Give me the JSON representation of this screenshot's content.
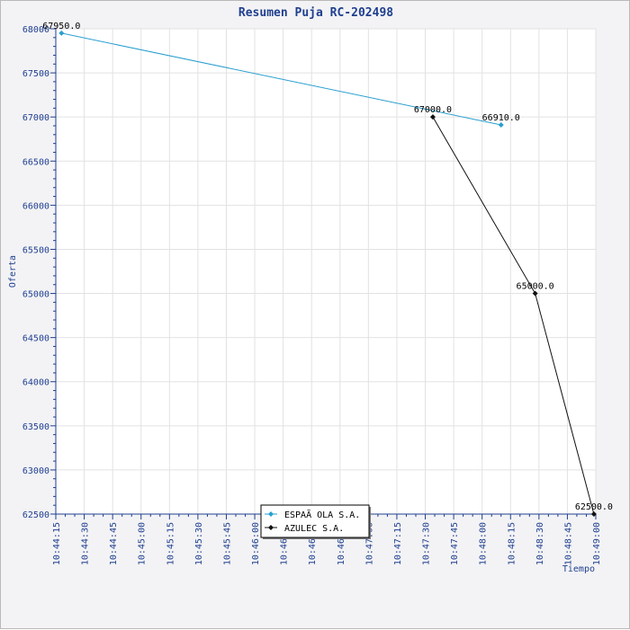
{
  "chart_data": {
    "type": "line",
    "title": "Resumen Puja RC-202498",
    "xlabel": "Tiempo",
    "ylabel": "Oferta",
    "x_ticks": [
      "10:44:15",
      "10:44:30",
      "10:44:45",
      "10:45:00",
      "10:45:15",
      "10:45:30",
      "10:45:45",
      "10:46:00",
      "10:46:15",
      "10:46:30",
      "10:46:45",
      "10:47:00",
      "10:47:15",
      "10:47:30",
      "10:47:45",
      "10:48:00",
      "10:48:15",
      "10:48:30",
      "10:48:45",
      "10:49:00"
    ],
    "x_range": [
      "10:44:15",
      "10:49:00"
    ],
    "y_ticks": [
      62500,
      63000,
      63500,
      64000,
      64500,
      65000,
      65500,
      66000,
      66500,
      67000,
      67500,
      68000
    ],
    "ylim": [
      62500,
      68000
    ],
    "grid": true,
    "legend_position": "bottom-center",
    "series": [
      {
        "name": "ESPAÃ OLA S.A.",
        "color": "#2a9fd0",
        "marker": "diamond",
        "points": [
          {
            "x": "10:44:18",
            "y": 67950,
            "label": "67950.0"
          },
          {
            "x": "10:48:10",
            "y": 66910,
            "label": "66910.0"
          }
        ]
      },
      {
        "name": "AZULEC S.A.",
        "color": "#111111",
        "marker": "diamond",
        "points": [
          {
            "x": "10:47:34",
            "y": 67000,
            "label": "67000.0"
          },
          {
            "x": "10:48:28",
            "y": 65000,
            "label": "65000.0"
          },
          {
            "x": "10:48:59",
            "y": 62500,
            "label": "62500.0"
          }
        ]
      }
    ]
  }
}
